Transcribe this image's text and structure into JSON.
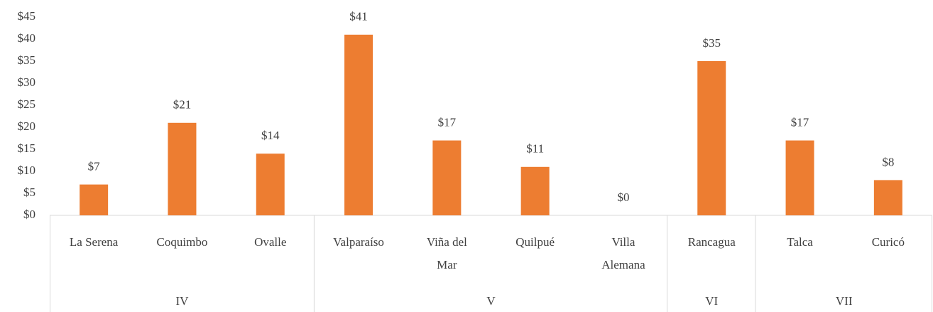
{
  "chart_data": {
    "type": "bar",
    "color": "#ed7d31",
    "groups": [
      {
        "name": "IV",
        "categories": [
          "La Serena",
          "Coquimbo",
          "Ovalle"
        ]
      },
      {
        "name": "V",
        "categories": [
          "Valparaíso",
          "Viña del Mar",
          "Quilpué",
          "Villa Alemana"
        ]
      },
      {
        "name": "VI",
        "categories": [
          "Rancagua"
        ]
      },
      {
        "name": "VII",
        "categories": [
          "Talca",
          "Curicó"
        ]
      }
    ],
    "values": [
      7,
      21,
      14,
      41,
      17,
      11,
      0,
      35,
      17,
      8
    ],
    "value_labels": [
      "$7",
      "$21",
      "$14",
      "$41",
      "$17",
      "$11",
      "$0",
      "$35",
      "$17",
      "$8"
    ],
    "ylim": [
      0,
      45
    ],
    "yticks": [
      {
        "value": 0,
        "label": "$0"
      },
      {
        "value": 5,
        "label": "$5"
      },
      {
        "value": 10,
        "label": "$10"
      },
      {
        "value": 15,
        "label": "$15"
      },
      {
        "value": 20,
        "label": "$20"
      },
      {
        "value": 25,
        "label": "$25"
      },
      {
        "value": 30,
        "label": "$30"
      },
      {
        "value": 35,
        "label": "$35"
      },
      {
        "value": 40,
        "label": "$40"
      },
      {
        "value": 45,
        "label": "$45"
      }
    ],
    "grid": false
  }
}
